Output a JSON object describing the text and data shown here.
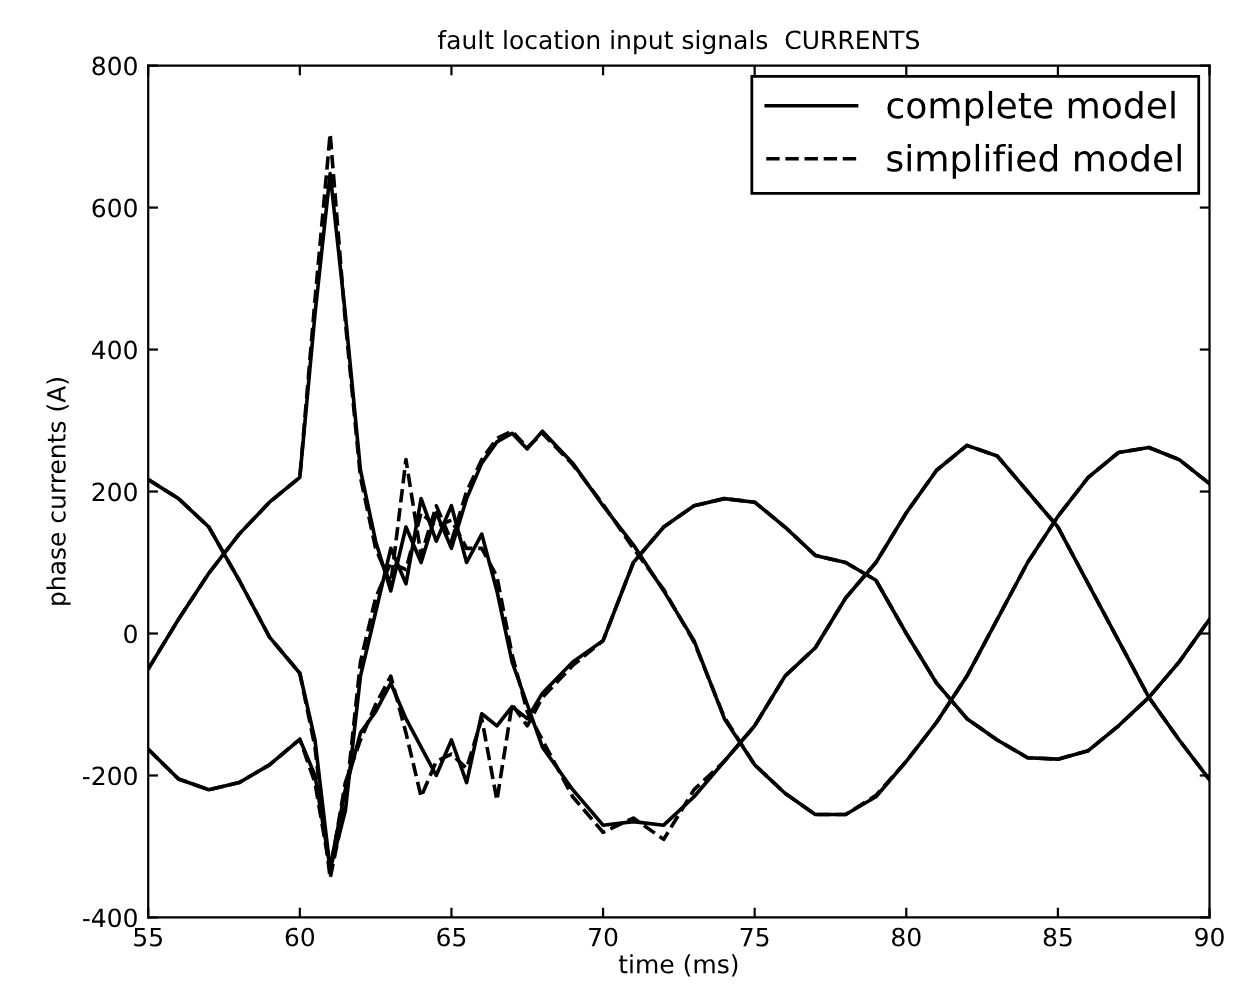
{
  "chart_data": {
    "type": "line",
    "title": "fault location input signals  CURRENTS",
    "xlabel": "time (ms)",
    "ylabel": "phase currents (A)",
    "x": [
      55,
      56,
      57,
      58,
      59,
      60,
      60.5,
      61,
      61.5,
      62,
      62.5,
      63,
      63.5,
      64,
      64.5,
      65,
      65.5,
      66,
      66.5,
      67,
      67.5,
      68,
      69,
      70,
      71,
      72,
      73,
      74,
      75,
      76,
      77,
      78,
      79,
      80,
      81,
      82,
      83,
      84,
      85,
      86,
      87,
      88,
      89,
      90
    ],
    "series": [
      {
        "name": "complete model",
        "color": "#000000",
        "line_style": "solid",
        "values": [
          -50,
          20,
          85,
          140,
          185,
          220,
          450,
          648,
          450,
          230,
          130,
          60,
          150,
          100,
          170,
          120,
          190,
          240,
          270,
          282,
          260,
          285,
          240,
          180,
          125,
          60,
          -10,
          -120,
          -185,
          -225,
          -255,
          -255,
          -230,
          -180,
          -125,
          -60,
          20,
          100,
          165,
          220,
          255,
          262,
          245,
          211
        ]
      },
      {
        "color": "#000000",
        "line_style": "solid",
        "values": [
          217,
          190,
          150,
          75,
          -5,
          -56,
          -150,
          -332,
          -250,
          -60,
          30,
          120,
          70,
          190,
          130,
          180,
          100,
          140,
          60,
          -40,
          -100,
          -160,
          -220,
          -270,
          -265,
          -270,
          -230,
          -180,
          -130,
          -60,
          -20,
          50,
          100,
          170,
          230,
          265,
          250,
          200,
          150,
          70,
          -10,
          -90,
          -150,
          -206
        ]
      },
      {
        "color": "#000000",
        "line_style": "solid",
        "values": [
          -163,
          -205,
          -220,
          -210,
          -185,
          -149,
          -200,
          -330,
          -220,
          -140,
          -110,
          -70,
          -120,
          -160,
          -200,
          -150,
          -210,
          -113,
          -130,
          -103,
          -120,
          -84,
          -40,
          -10,
          100,
          150,
          180,
          190,
          185,
          150,
          110,
          100,
          75,
          0,
          -70,
          -120,
          -150,
          -175,
          -177,
          -165,
          -130,
          -90,
          -40,
          20
        ]
      },
      {
        "name": "simplified model",
        "color": "#000000",
        "line_style": "dashed",
        "values": [
          -50,
          20,
          85,
          140,
          185,
          220,
          470,
          704,
          440,
          220,
          120,
          70,
          245,
          110,
          180,
          130,
          200,
          245,
          275,
          285,
          262,
          282,
          238,
          182,
          120,
          62,
          -12,
          -118,
          -185,
          -225,
          -255,
          -255,
          -228,
          -180,
          -125,
          -60,
          20,
          100,
          165,
          220,
          255,
          262,
          245,
          211
        ]
      },
      {
        "color": "#000000",
        "line_style": "dashed",
        "values": [
          217,
          190,
          150,
          75,
          -5,
          -56,
          -160,
          -345,
          -240,
          -40,
          50,
          100,
          90,
          170,
          150,
          160,
          120,
          120,
          80,
          -30,
          -110,
          -150,
          -230,
          -280,
          -260,
          -290,
          -220,
          -180,
          -130,
          -60,
          -20,
          50,
          100,
          170,
          230,
          265,
          250,
          200,
          150,
          70,
          -10,
          -90,
          -150,
          -206
        ]
      },
      {
        "color": "#000000",
        "line_style": "dashed",
        "values": [
          -163,
          -205,
          -220,
          -210,
          -185,
          -149,
          -210,
          -335,
          -210,
          -150,
          -100,
          -60,
          -140,
          -230,
          -180,
          -170,
          -190,
          -120,
          -235,
          -100,
          -130,
          -90,
          -45,
          -10,
          100,
          150,
          180,
          190,
          185,
          150,
          110,
          100,
          75,
          0,
          -70,
          -120,
          -150,
          -175,
          -177,
          -165,
          -130,
          -90,
          -40,
          20
        ]
      }
    ],
    "xlim": [
      55,
      90
    ],
    "xticks": [
      55,
      60,
      65,
      70,
      75,
      80,
      85,
      90
    ],
    "ylim": [
      -400,
      800
    ],
    "yticks": [
      -400,
      -200,
      0,
      200,
      400,
      600,
      800
    ],
    "grid": false,
    "legend": "top right",
    "marker": "none"
  }
}
